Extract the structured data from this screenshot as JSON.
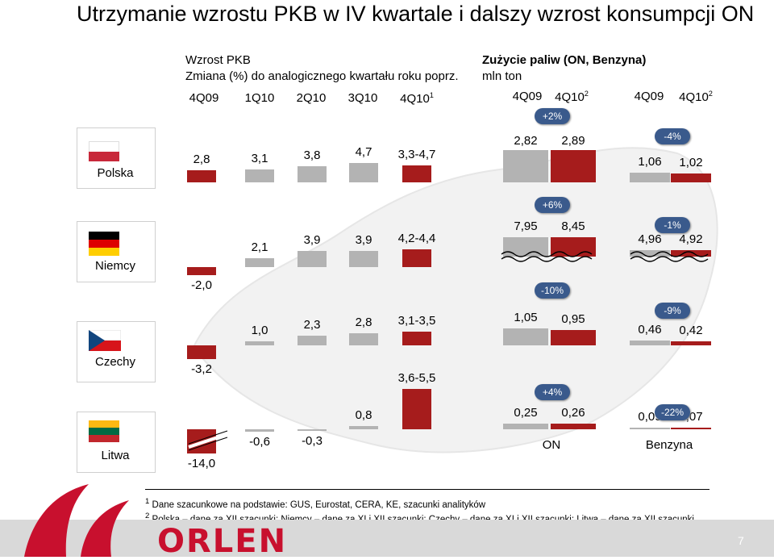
{
  "title": "Utrzymanie wzrostu PKB w IV kwartale i dalszy wzrost konsumpcji ON",
  "gdp_header": {
    "line1": "Wzrost PKB",
    "line2": "Zmiana (%) do analogicznego kwartału roku poprz."
  },
  "fuel_header": {
    "line1": "Zużycie paliw (ON, Benzyna)",
    "line2": "mln ton"
  },
  "gdp_columns": [
    "4Q09",
    "1Q10",
    "2Q10",
    "3Q10",
    "4Q10"
  ],
  "gdp_last_column_sup": "1",
  "fuel_columns": [
    "4Q09",
    "4Q10",
    "4Q09",
    "4Q10"
  ],
  "fuel_column_sup": "2",
  "fuel_groups": [
    "ON",
    "Benzyna"
  ],
  "colors": {
    "red": "#a61c1c",
    "grey": "#b3b3b3",
    "pill": "#3a5a8c",
    "accent": "#c8102e"
  },
  "chart_data": {
    "type": "bar",
    "countries": [
      "Polska",
      "Niemcy",
      "Czechy",
      "Litwa"
    ],
    "gdp": {
      "categories": [
        "4Q09",
        "1Q10",
        "2Q10",
        "3Q10",
        "4Q10"
      ],
      "series": [
        {
          "country": "Polska",
          "values": [
            2.8,
            3.1,
            3.8,
            4.7,
            4.0
          ],
          "labels": [
            "2,8",
            "3,1",
            "3,8",
            "4,7",
            "3,3-4,7"
          ]
        },
        {
          "country": "Niemcy",
          "values": [
            -2.0,
            2.1,
            3.9,
            3.9,
            4.3
          ],
          "labels": [
            "-2,0",
            "2,1",
            "3,9",
            "3,9",
            "4,2-4,4"
          ]
        },
        {
          "country": "Czechy",
          "values": [
            -3.2,
            1.0,
            2.3,
            2.8,
            3.3
          ],
          "labels": [
            "-3,2",
            "1,0",
            "2,3",
            "2,8",
            "3,1-3,5"
          ]
        },
        {
          "country": "Litwa",
          "values": [
            -14.0,
            -0.6,
            -0.3,
            0.8,
            4.55
          ],
          "labels": [
            "-14,0",
            "-0,6",
            "-0,3",
            "0,8",
            "3,6-5,5"
          ]
        }
      ]
    },
    "fuel": {
      "series": [
        {
          "country": "Polska",
          "on": [
            2.82,
            2.89
          ],
          "on_labels": [
            "2,82",
            "2,89"
          ],
          "on_change": "+2%",
          "benz": [
            1.06,
            1.02
          ],
          "benz_labels": [
            "1,06",
            "1,02"
          ],
          "benz_change": "-4%"
        },
        {
          "country": "Niemcy",
          "on": [
            7.95,
            8.45
          ],
          "on_labels": [
            "7,95",
            "8,45"
          ],
          "on_change": "+6%",
          "benz": [
            4.96,
            4.92
          ],
          "benz_labels": [
            "4,96",
            "4,92"
          ],
          "benz_change": "-1%"
        },
        {
          "country": "Czechy",
          "on": [
            1.05,
            0.95
          ],
          "on_labels": [
            "1,05",
            "0,95"
          ],
          "on_change": "-10%",
          "benz": [
            0.46,
            0.42
          ],
          "benz_labels": [
            "0,46",
            "0,42"
          ],
          "benz_change": "-9%"
        },
        {
          "country": "Litwa",
          "on": [
            0.25,
            0.26
          ],
          "on_labels": [
            "0,25",
            "0,26"
          ],
          "on_change": "+4%",
          "benz": [
            0.09,
            0.07
          ],
          "benz_labels": [
            "0,09",
            "0,07"
          ],
          "benz_change": "-22%"
        }
      ]
    }
  },
  "footnotes": [
    {
      "sup": "1",
      "text": "Dane szacunkowe na podstawie: GUS, Eurostat, CERA, KE, szacunki analityków"
    },
    {
      "sup": "2",
      "text": "Polska – dane za XII szacunki; Niemcy – dane za XI i XII szacunki; Czechy – dane za XI i XII szacunki; Litwa – dane za XII szacunki"
    }
  ],
  "logo_text": "ORLEN",
  "page_number": "7"
}
